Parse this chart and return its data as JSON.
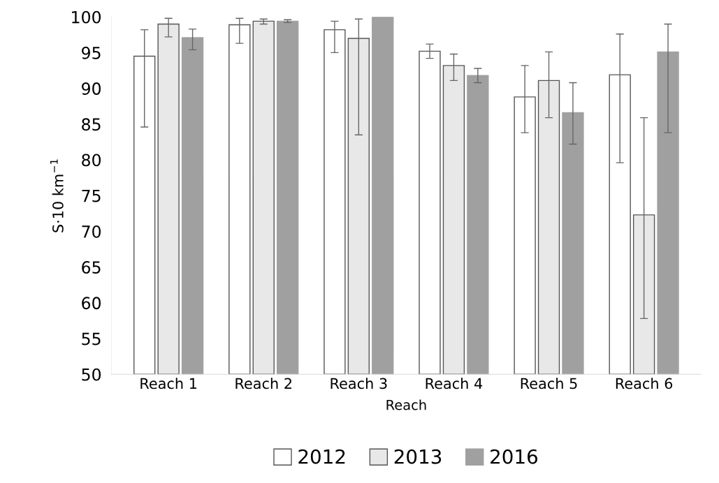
{
  "chart_data": {
    "type": "bar",
    "xlabel": "Reach",
    "ylabel": "S·10 km$^{−1}$",
    "categories": [
      "Reach 1",
      "Reach 2",
      "Reach 3",
      "Reach 4",
      "Reach 5",
      "Reach 6"
    ],
    "series": [
      {
        "name": "2012",
        "color": "#ffffff",
        "values": [
          94.5,
          98.9,
          98.2,
          95.2,
          88.8,
          91.9
        ],
        "errors": [
          [
            84.6,
            98.2
          ],
          [
            96.3,
            99.8
          ],
          [
            95.0,
            99.4
          ],
          [
            94.2,
            96.2
          ],
          [
            83.8,
            93.2
          ],
          [
            79.6,
            97.6
          ]
        ]
      },
      {
        "name": "2013",
        "color": "#e8e8e8",
        "values": [
          99.0,
          99.4,
          97.0,
          93.2,
          91.1,
          72.3
        ],
        "errors": [
          [
            97.2,
            99.8
          ],
          [
            99.0,
            99.7
          ],
          [
            83.5,
            99.7
          ],
          [
            91.1,
            94.8
          ],
          [
            85.9,
            95.1
          ],
          [
            57.8,
            85.9
          ]
        ]
      },
      {
        "name": "2016",
        "color": "#a0a0a0",
        "values": [
          97.1,
          99.4,
          100,
          91.8,
          86.6,
          95.1
        ],
        "errors": [
          [
            95.4,
            98.3
          ],
          [
            99.2,
            99.6
          ],
          null,
          [
            90.8,
            92.8
          ],
          [
            82.2,
            90.8
          ],
          [
            83.8,
            99.0
          ]
        ]
      }
    ],
    "ylim": [
      50,
      100
    ],
    "yticks": [
      50,
      55,
      60,
      65,
      70,
      75,
      80,
      85,
      90,
      95,
      100
    ],
    "grid": false,
    "legend": "bottom"
  }
}
